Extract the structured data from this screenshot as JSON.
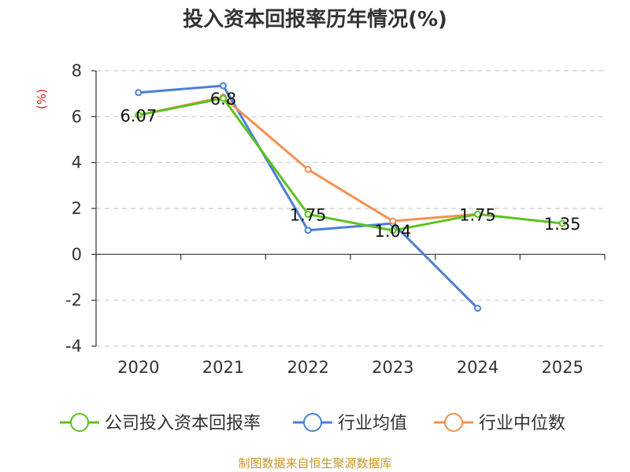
{
  "chart_data": {
    "type": "line",
    "title": "投入资本回报率历年情况(%)",
    "ylabel": "(%)",
    "ylim": [
      -4,
      8
    ],
    "yticks": [
      "8",
      "6",
      "4",
      "2",
      "0",
      "-2",
      "-4"
    ],
    "categories": [
      "2020",
      "2021",
      "2022",
      "2023",
      "2024",
      "2025"
    ],
    "grid": true,
    "legend_position": "bottom",
    "series": [
      {
        "name": "公司投入资本回报率",
        "color": "#5cc31e",
        "values": [
          6.07,
          6.8,
          1.75,
          1.04,
          1.75,
          1.35
        ],
        "labels": [
          "6.07",
          "6.8",
          "1.75",
          "1.04",
          "1.75",
          "1.35"
        ]
      },
      {
        "name": "行业均值",
        "color": "#4a7fd8",
        "values": [
          7.05,
          7.35,
          1.05,
          1.35,
          -2.35,
          null
        ],
        "labels": []
      },
      {
        "name": "行业中位数",
        "color": "#f59050",
        "values": [
          6.07,
          6.85,
          3.7,
          1.45,
          1.75,
          null
        ],
        "labels": []
      }
    ],
    "source": "制图数据来自恒生聚源数据库"
  }
}
